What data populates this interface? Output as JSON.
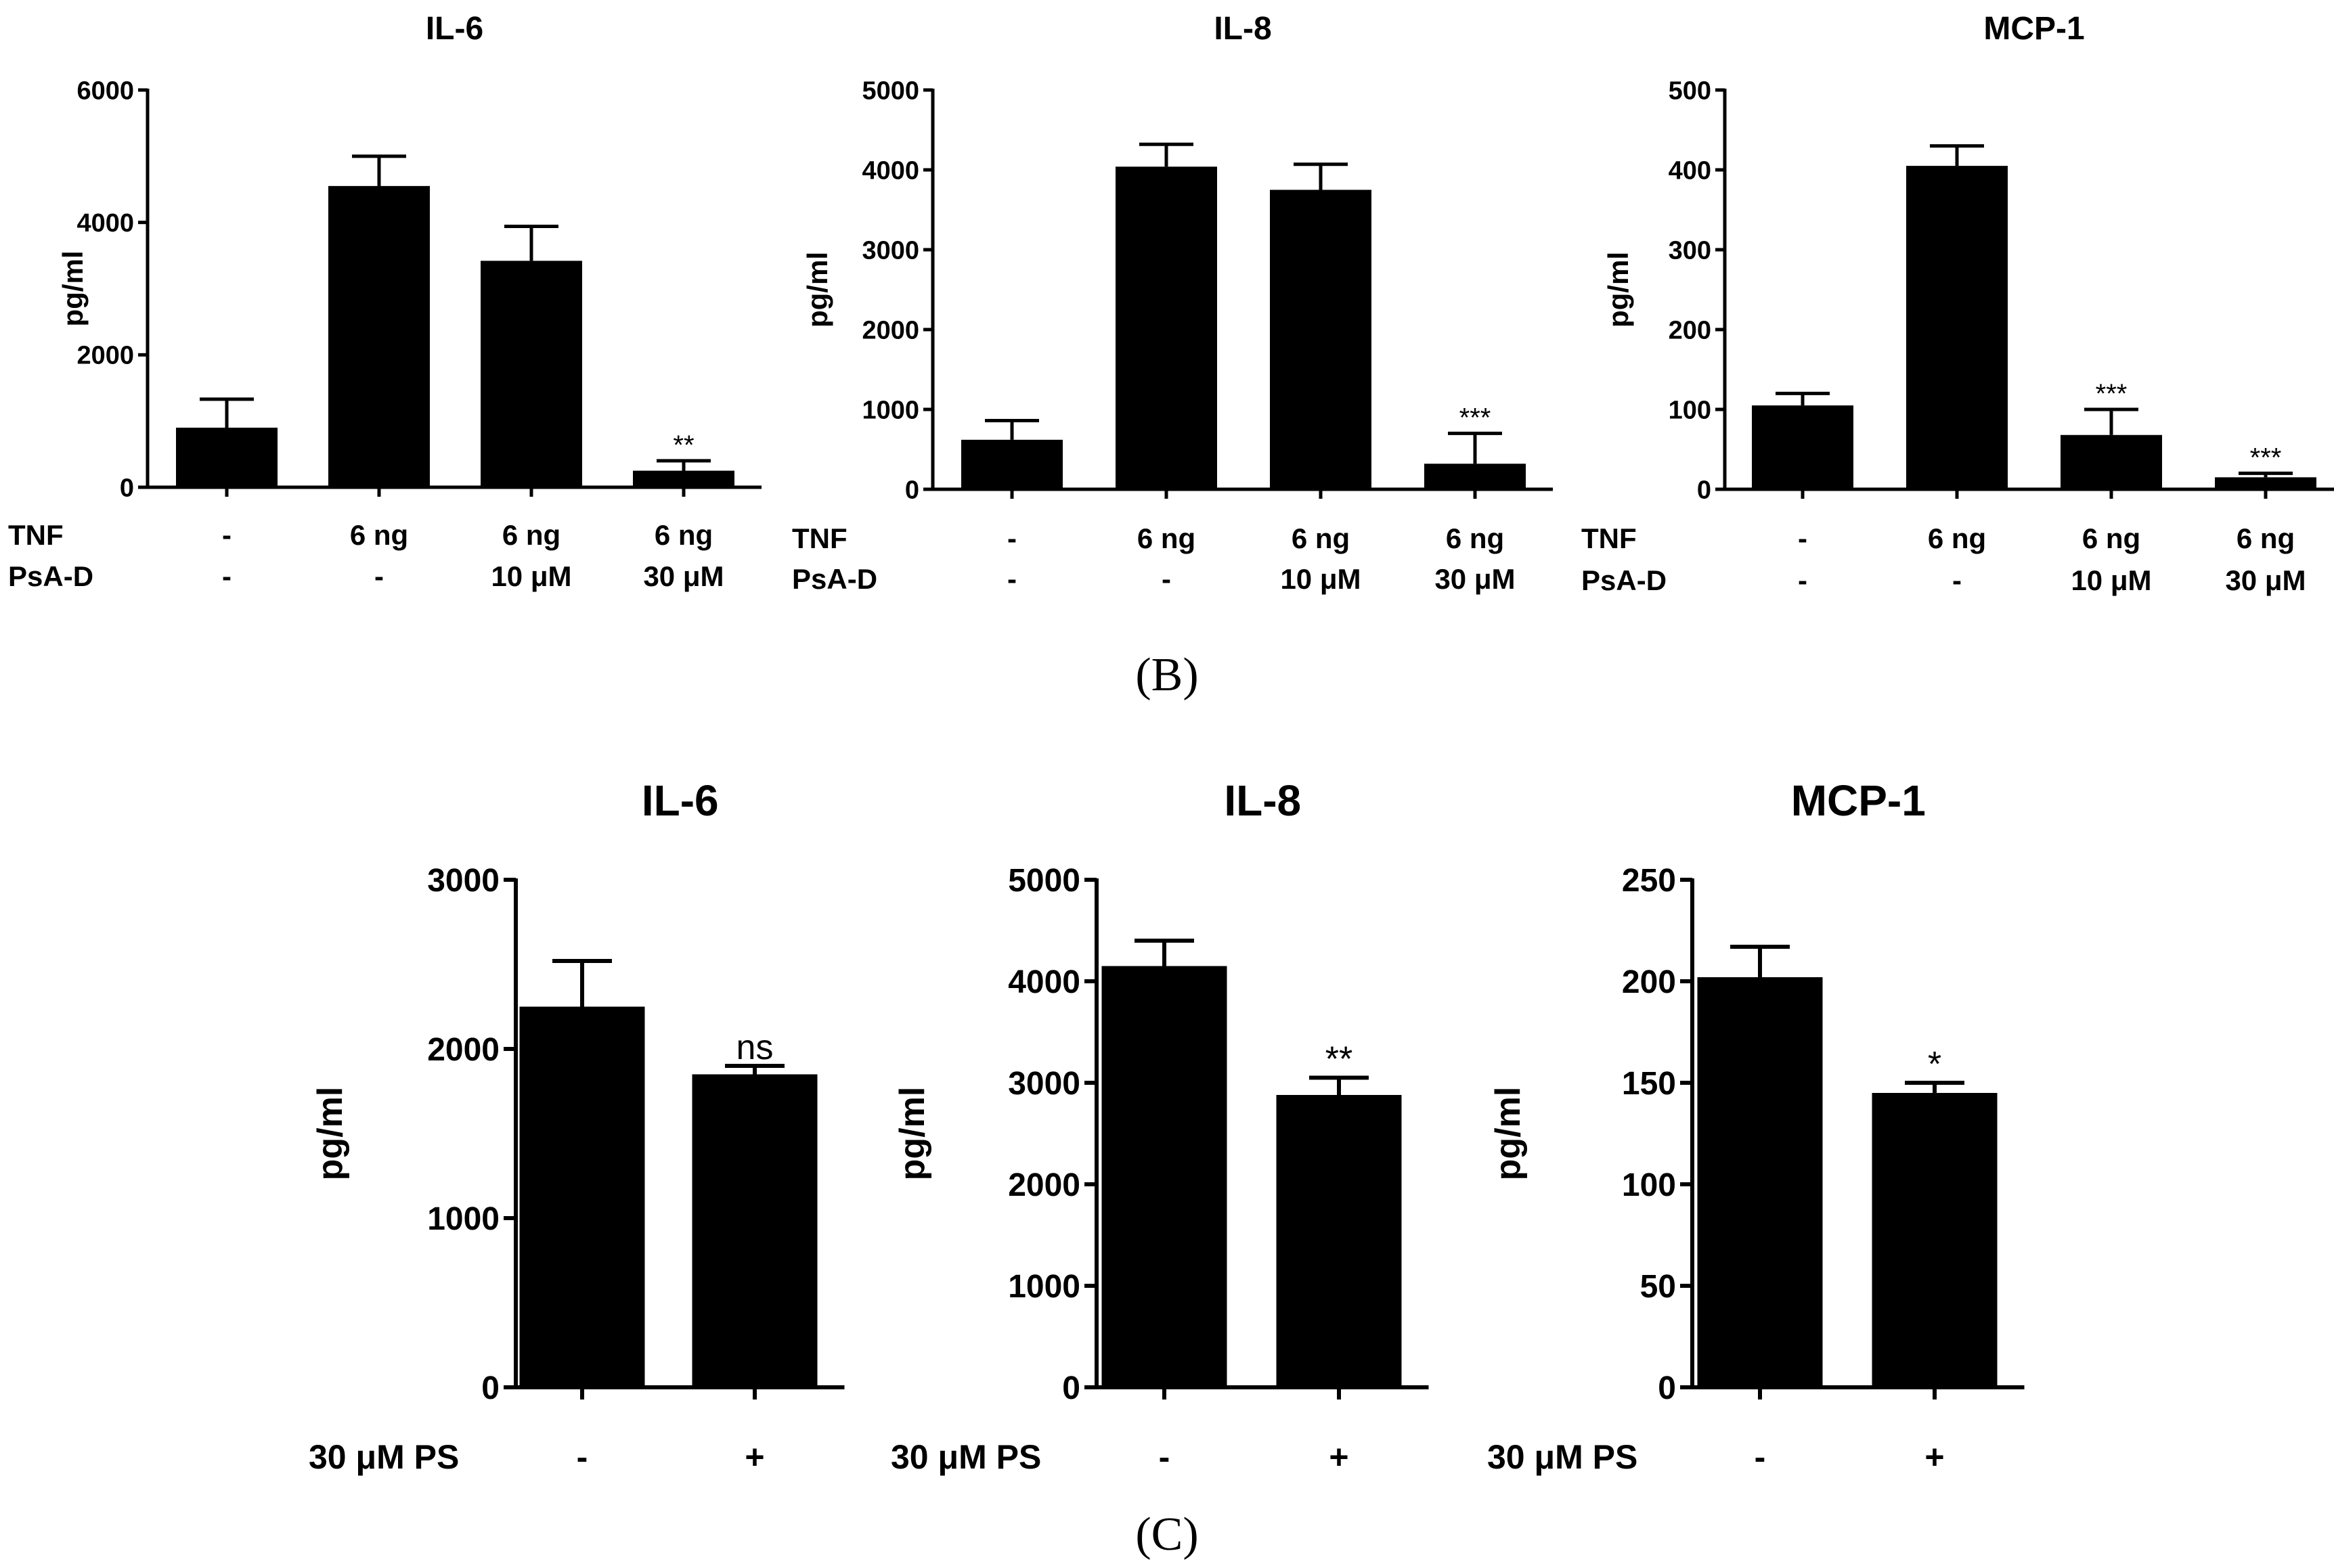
{
  "panels": [
    {
      "label": "(B)"
    },
    {
      "label": "(C)"
    }
  ],
  "chart_data": [
    {
      "type": "bar",
      "title": "IL-6",
      "ylabel": "pg/ml",
      "ylim": [
        0,
        6000
      ],
      "yticks": [
        "0",
        "2000",
        "4000",
        "6000"
      ],
      "condition_rows": [
        {
          "name": "TNF",
          "values": [
            "-",
            "6 ng",
            "6 ng",
            "6 ng"
          ]
        },
        {
          "name": "PsA-D",
          "values": [
            "-",
            "-",
            "10 μM",
            "30 μM"
          ]
        }
      ],
      "values": [
        900,
        4550,
        3420,
        250
      ],
      "errors": [
        430,
        450,
        520,
        150
      ],
      "annotations": [
        "",
        "",
        "",
        "**"
      ]
    },
    {
      "type": "bar",
      "title": "IL-8",
      "ylabel": "pg/ml",
      "ylim": [
        0,
        5000
      ],
      "yticks": [
        "0",
        "1000",
        "2000",
        "3000",
        "4000",
        "5000"
      ],
      "condition_rows": [
        {
          "name": "TNF",
          "values": [
            "-",
            "6 ng",
            "6 ng",
            "6 ng"
          ]
        },
        {
          "name": "PsA-D",
          "values": [
            "-",
            "-",
            "10 μM",
            "30 μM"
          ]
        }
      ],
      "values": [
        620,
        4040,
        3750,
        320
      ],
      "errors": [
        240,
        280,
        320,
        380
      ],
      "annotations": [
        "",
        "",
        "",
        "***"
      ]
    },
    {
      "type": "bar",
      "title": "MCP-1",
      "ylabel": "pg/ml",
      "ylim": [
        0,
        500
      ],
      "yticks": [
        "0",
        "100",
        "200",
        "300",
        "400",
        "500"
      ],
      "condition_rows": [
        {
          "name": "TNF",
          "values": [
            "-",
            "6 ng",
            "6 ng",
            "6 ng"
          ]
        },
        {
          "name": "PsA-D",
          "values": [
            "-",
            "-",
            "10 μM",
            "30 μM"
          ]
        }
      ],
      "values": [
        105,
        405,
        68,
        15
      ],
      "errors": [
        15,
        25,
        32,
        5
      ],
      "annotations": [
        "",
        "",
        "***",
        "***"
      ]
    },
    {
      "type": "bar",
      "title": "IL-6",
      "ylabel": "pg/ml",
      "ylim": [
        0,
        3000
      ],
      "yticks": [
        "0",
        "1000",
        "2000",
        "3000"
      ],
      "condition_rows": [
        {
          "name": "30 μM PS",
          "values": [
            "-",
            "+"
          ]
        }
      ],
      "values": [
        2250,
        1850
      ],
      "errors": [
        270,
        50
      ],
      "annotations": [
        "",
        "ns"
      ]
    },
    {
      "type": "bar",
      "title": "IL-8",
      "ylabel": "pg/ml",
      "ylim": [
        0,
        5000
      ],
      "yticks": [
        "0",
        "1000",
        "2000",
        "3000",
        "4000",
        "5000"
      ],
      "condition_rows": [
        {
          "name": "30 μM PS",
          "values": [
            "-",
            "+"
          ]
        }
      ],
      "values": [
        4150,
        2880
      ],
      "errors": [
        250,
        170
      ],
      "annotations": [
        "",
        "**"
      ]
    },
    {
      "type": "bar",
      "title": "MCP-1",
      "ylabel": "pg/ml",
      "ylim": [
        0,
        250
      ],
      "yticks": [
        "0",
        "50",
        "100",
        "150",
        "200",
        "250"
      ],
      "condition_rows": [
        {
          "name": "30 μM PS",
          "values": [
            "-",
            "+"
          ]
        }
      ],
      "values": [
        202,
        145
      ],
      "errors": [
        15,
        5
      ],
      "annotations": [
        "",
        "*"
      ]
    }
  ]
}
